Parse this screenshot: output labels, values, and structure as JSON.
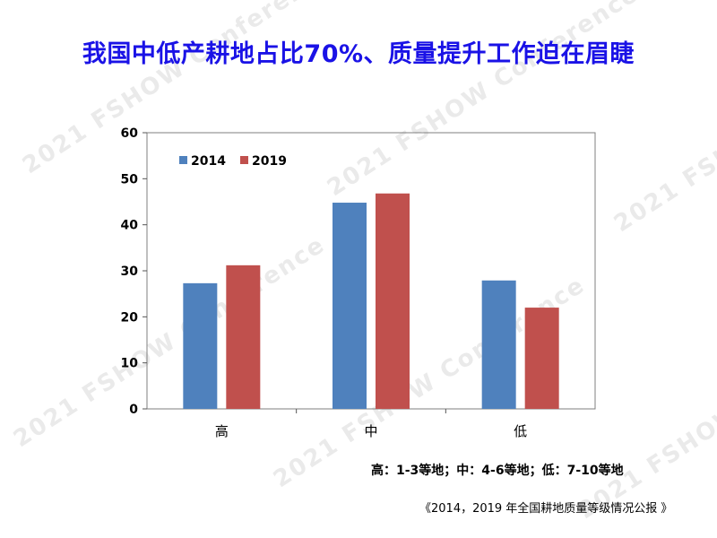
{
  "title": "我国中低产耕地占比70%、质量提升工作迫在眉睫",
  "watermark": "2021 FSHOW Conference",
  "note": "高：1-3等地；中：4-6等地；低：7-10等地",
  "source": "《2014，2019 年全国耕地质量等级情况公报 》",
  "chart_data": {
    "type": "bar",
    "categories": [
      "高",
      "中",
      "低"
    ],
    "series": [
      {
        "name": "2014",
        "values": [
          27.3,
          44.8,
          27.9
        ],
        "color": "#4f81bd"
      },
      {
        "name": "2019",
        "values": [
          31.2,
          46.8,
          22.0
        ],
        "color": "#c0504d"
      }
    ],
    "ylim": [
      0,
      60
    ],
    "yticks": [
      0,
      10,
      20,
      30,
      40,
      50,
      60
    ],
    "legend": "top-left",
    "grid": false
  }
}
